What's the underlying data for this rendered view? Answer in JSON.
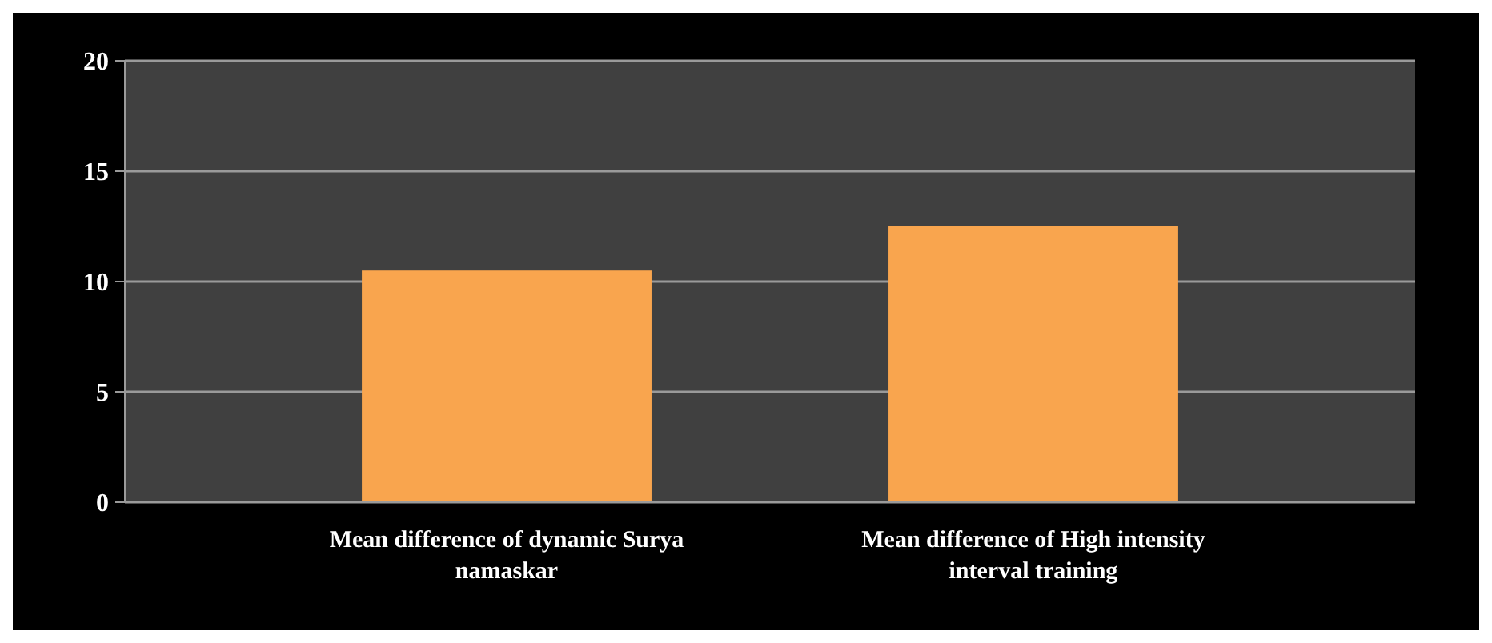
{
  "chart_data": {
    "type": "bar",
    "categories": [
      "Mean difference of dynamic Surya namaskar",
      "Mean difference of High intensity interval training"
    ],
    "values": [
      10.5,
      12.5
    ],
    "color": "#f9a54e",
    "ylim": [
      0,
      20
    ],
    "yticks": [
      0,
      5,
      10,
      15,
      20
    ],
    "grid": "y"
  }
}
